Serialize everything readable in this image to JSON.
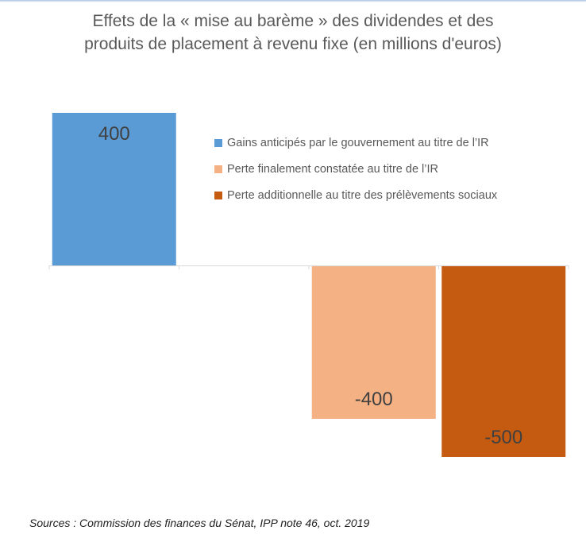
{
  "chart_data": {
    "type": "bar",
    "title_lines": [
      "Effets de la « mise au barème » des dividendes et des",
      "produits de placement à revenu fixe (en millions d'euros)"
    ],
    "categories": [
      "",
      "",
      "",
      ""
    ],
    "series": [
      {
        "name": "Gains anticipés par le gouvernement au titre de l’IR",
        "color": "#5b9bd5",
        "values": [
          400,
          null,
          null,
          null
        ]
      },
      {
        "name": "Perte finalement constatée au titre de l’IR",
        "color": "#f4b183",
        "values": [
          null,
          null,
          -400,
          null
        ]
      },
      {
        "name": "Perte additionnelle au titre des prélèvements sociaux",
        "color": "#c55a11",
        "values": [
          null,
          null,
          null,
          -500
        ]
      }
    ],
    "data_labels": [
      "400",
      "-400",
      "-500"
    ],
    "ylim": [
      -500,
      400
    ],
    "grid": false,
    "legend_position": "right-top",
    "xlabel": "",
    "ylabel": ""
  },
  "source": "Sources : Commission des finances du Sénat, IPP note 46, oct. 2019"
}
